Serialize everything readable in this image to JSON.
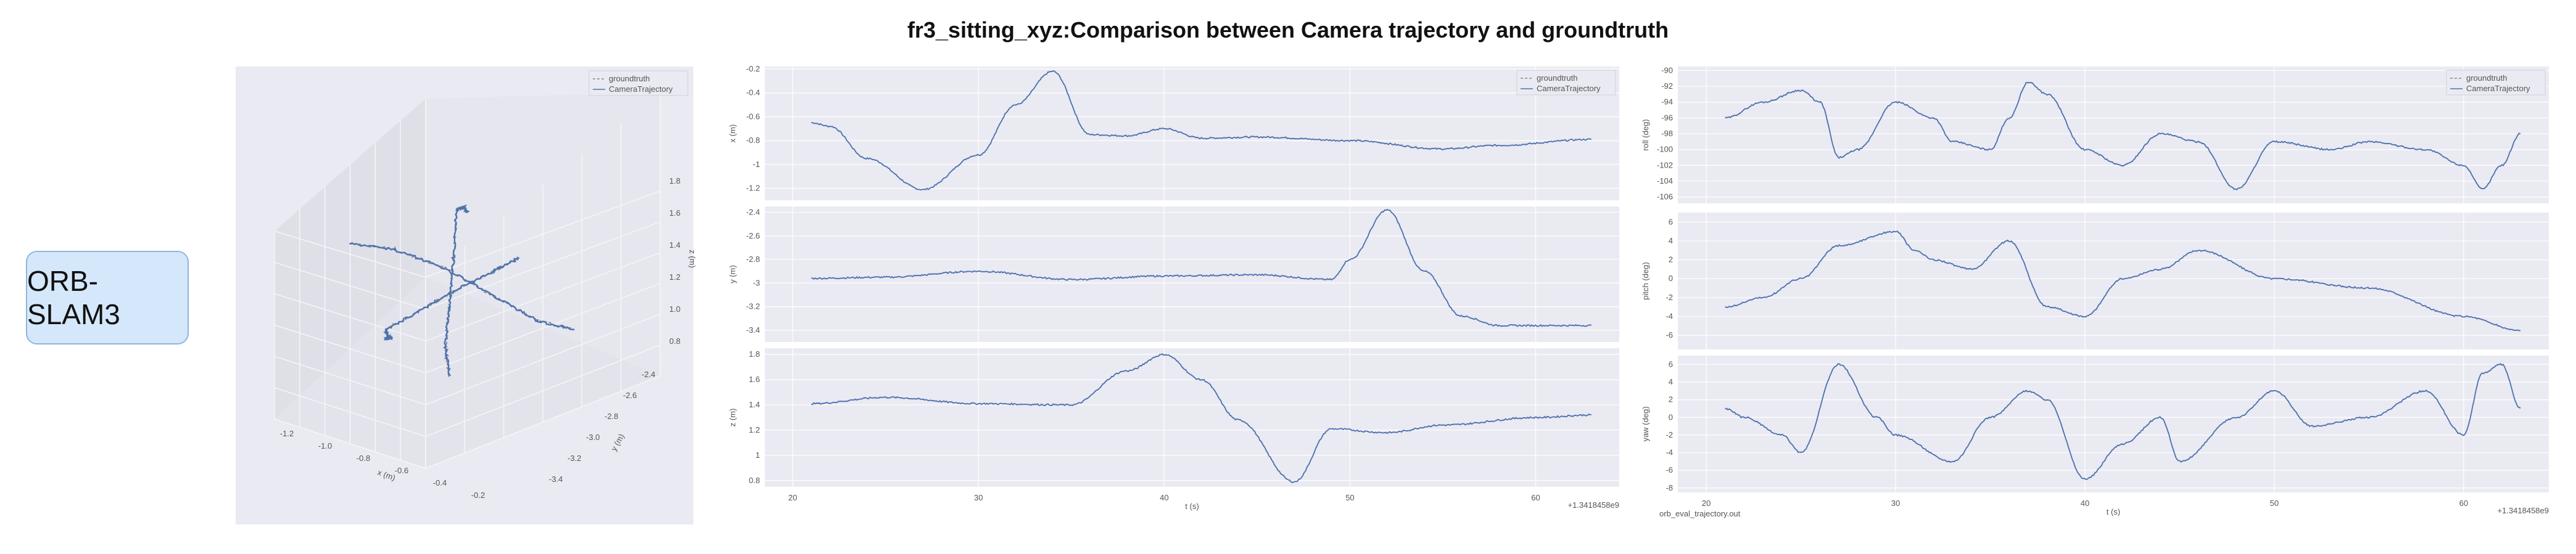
{
  "title": "fr3_sitting_xyz:Comparison between Camera trajectory and groundtruth",
  "method_label": "ORB-SLAM3",
  "colors": {
    "groundtruth": "#888888",
    "trajectory": "#4c72b0",
    "panel_bg": "#eaeaf2"
  },
  "chart_data": [
    {
      "type": "scatter",
      "name": "trajectory-3d",
      "series": [
        {
          "name": "groundtruth"
        },
        {
          "name": "CameraTrajectory"
        }
      ],
      "xlabel": "x (m)",
      "ylabel": "y (m)",
      "zlabel": "z (m)",
      "x_ticks": [
        "-1.2",
        "-1.0",
        "-0.8",
        "-0.6",
        "-0.4",
        "-0.2"
      ],
      "y_ticks": [
        "-2.4",
        "-2.6",
        "-2.8",
        "-3.0",
        "-3.2",
        "-3.4"
      ],
      "z_ticks": [
        "1.8",
        "1.6",
        "1.4",
        "1.2",
        "1.0",
        "0.8"
      ],
      "legend": "top-right"
    },
    {
      "type": "line",
      "name": "position",
      "xlabel": "t (s)",
      "x_ticks": [
        "20",
        "30",
        "40",
        "50",
        "60"
      ],
      "x_offset_label": "+1.3418458e9",
      "xlim": [
        18.5,
        64.5
      ],
      "legend": "top-right",
      "series_names": [
        "groundtruth",
        "CameraTrajectory"
      ],
      "subplots": [
        {
          "ylabel": "x (m)",
          "ylim": [
            -1.3,
            -0.18
          ],
          "y_ticks": [
            -0.2,
            -0.4,
            -0.6,
            -0.8,
            -1.0,
            -1.2
          ],
          "t": [
            21,
            22,
            24,
            27,
            30,
            32,
            34,
            36,
            38,
            40,
            42,
            45,
            50,
            55,
            58,
            63
          ],
          "y": [
            -0.65,
            -0.68,
            -0.95,
            -1.21,
            -0.92,
            -0.5,
            -0.22,
            -0.75,
            -0.76,
            -0.7,
            -0.78,
            -0.77,
            -0.8,
            -0.87,
            -0.84,
            -0.79
          ]
        },
        {
          "ylabel": "y (m)",
          "ylim": [
            -3.5,
            -2.35
          ],
          "y_ticks": [
            -2.4,
            -2.6,
            -2.8,
            -3.0,
            -3.2,
            -3.4
          ],
          "t": [
            21,
            25,
            30,
            35,
            40,
            45,
            49,
            50,
            52,
            54,
            56,
            58,
            60,
            63
          ],
          "y": [
            -2.96,
            -2.95,
            -2.9,
            -2.97,
            -2.94,
            -2.93,
            -2.97,
            -2.8,
            -2.38,
            -2.9,
            -3.28,
            -3.36,
            -3.36,
            -3.36
          ]
        },
        {
          "ylabel": "z (m)",
          "ylim": [
            0.75,
            1.85
          ],
          "y_ticks": [
            1.8,
            1.6,
            1.4,
            1.2,
            1.0,
            0.8
          ],
          "t": [
            21,
            25,
            30,
            35,
            38,
            40,
            42,
            44,
            47,
            49,
            52,
            55,
            60,
            63
          ],
          "y": [
            1.41,
            1.46,
            1.41,
            1.4,
            1.67,
            1.8,
            1.6,
            1.28,
            0.79,
            1.21,
            1.18,
            1.24,
            1.3,
            1.32
          ]
        }
      ]
    },
    {
      "type": "line",
      "name": "orientation",
      "xlabel": "t (s)",
      "x_ticks": [
        "20",
        "30",
        "40",
        "50",
        "60"
      ],
      "x_offset_label": "+1.3418458e9",
      "footnote": "orb_eval_trajectory.out",
      "xlim": [
        18.5,
        64.5
      ],
      "legend": "top-right",
      "series_names": [
        "groundtruth",
        "CameraTrajectory"
      ],
      "subplots": [
        {
          "ylabel": "roll (deg)",
          "ylim": [
            -106.8,
            -89.5
          ],
          "y_ticks": [
            -90,
            -92,
            -94,
            -96,
            -98,
            -100,
            -102,
            -104,
            -106
          ],
          "t": [
            21,
            23,
            25,
            26,
            27,
            28,
            30,
            32,
            33,
            35,
            36,
            37,
            38,
            40,
            42,
            44,
            46,
            48,
            50,
            53,
            55,
            58,
            60,
            61,
            62,
            63
          ],
          "y": [
            -96,
            -94,
            -92.5,
            -94,
            -101,
            -100,
            -94,
            -96,
            -99,
            -100,
            -96,
            -91.5,
            -93,
            -100,
            -102,
            -98,
            -99,
            -105,
            -99,
            -100,
            -99,
            -100,
            -102,
            -105,
            -102,
            -98
          ]
        },
        {
          "ylabel": "pitch (deg)",
          "ylim": [
            -7.5,
            7
          ],
          "y_ticks": [
            6,
            4,
            2,
            0,
            -2,
            -4,
            -6
          ],
          "t": [
            21,
            23,
            25,
            27,
            30,
            31,
            32,
            34,
            36,
            38,
            40,
            42,
            44,
            46,
            50,
            55,
            60,
            63
          ],
          "y": [
            -3,
            -2,
            0,
            3.5,
            5,
            3,
            2,
            1,
            4,
            -3,
            -4,
            0,
            1,
            3,
            0,
            -1,
            -4,
            -5.5
          ]
        },
        {
          "ylabel": "yaw (deg)",
          "ylim": [
            -8.5,
            7
          ],
          "y_ticks": [
            6,
            4,
            2,
            0,
            -2,
            -4,
            -6,
            -8
          ],
          "t": [
            21,
            22,
            24,
            25,
            27,
            29,
            30,
            33,
            35,
            37,
            38,
            40,
            42,
            44,
            45,
            48,
            50,
            52,
            55,
            58,
            60,
            61,
            62,
            63
          ],
          "y": [
            1,
            0,
            -2,
            -4,
            6,
            0,
            -2,
            -5,
            0,
            3,
            2,
            -7,
            -3,
            0,
            -5,
            0,
            3,
            -1,
            0,
            3,
            -2,
            5,
            6,
            1
          ]
        }
      ]
    }
  ]
}
